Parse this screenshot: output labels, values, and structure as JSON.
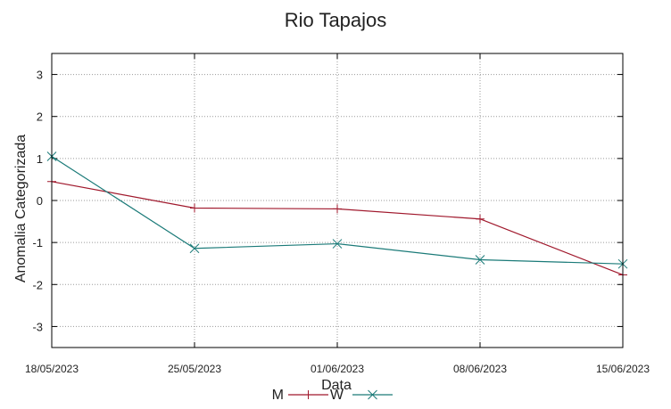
{
  "chart_data": {
    "type": "line",
    "title": "Rio Tapajos",
    "xlabel": "Data",
    "ylabel": "Anomalia Categorizada",
    "x_ticks": [
      "18/05/2023",
      "25/05/2023",
      "01/06/2023",
      "08/06/2023",
      "15/06/2023"
    ],
    "y_ticks": [
      3,
      2,
      1,
      0,
      -1,
      -2,
      -3
    ],
    "ylim": [
      -3.5,
      3.5
    ],
    "grid": true,
    "legend_position": "bottom-center",
    "series": [
      {
        "name": "M",
        "color": "#a0182c",
        "marker": "plus",
        "values": [
          0.45,
          -0.18,
          -0.2,
          -0.44,
          -1.77
        ]
      },
      {
        "name": "W",
        "color": "#1a7a78",
        "marker": "cross",
        "values": [
          1.05,
          -1.14,
          -1.03,
          -1.41,
          -1.51
        ]
      }
    ]
  }
}
